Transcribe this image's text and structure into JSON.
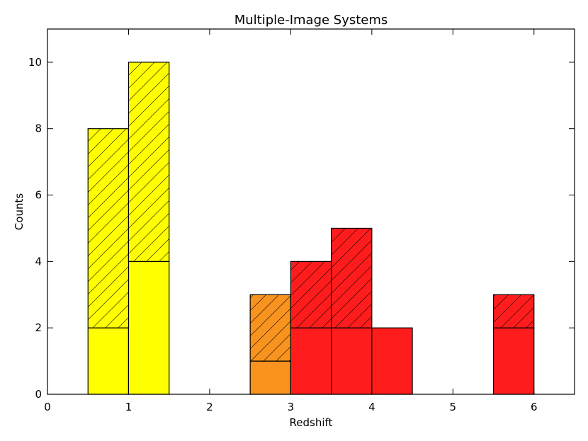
{
  "chart_data": {
    "type": "histogram",
    "title": "Multiple-Image Systems",
    "x_label": "Redshift",
    "y_label": "Counts",
    "bins": [
      0.5,
      1.0,
      1.5,
      2.0,
      2.5,
      3.0,
      3.5,
      4.0,
      4.5,
      5.0,
      5.5,
      6.0
    ],
    "bar_colors": [
      "#ffff00",
      "#ffff00",
      "#ffff00",
      "#ffff00",
      "#f7931e",
      "#ff1c1c",
      "#ff1c1c",
      "#ff1c1c",
      "#ff1c1c",
      "#ff1c1c",
      "#ff1c1c"
    ],
    "series": [
      {
        "hatch": false,
        "values": [
          2,
          4,
          0,
          0,
          1,
          2,
          2,
          2,
          0,
          0,
          2
        ]
      },
      {
        "hatch": true,
        "values": [
          6,
          6,
          0,
          0,
          2,
          2,
          3,
          0,
          0,
          0,
          1
        ]
      }
    ],
    "stacked": true,
    "xlim": [
      0,
      6.5
    ],
    "xticks": [
      0,
      1,
      2,
      3,
      4,
      5,
      6
    ],
    "ylim": [
      0,
      11
    ],
    "yticks": [
      0,
      2,
      4,
      6,
      8,
      10
    ]
  }
}
